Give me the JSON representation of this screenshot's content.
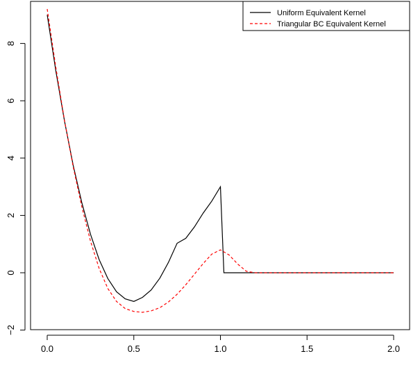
{
  "chart_data": {
    "type": "line",
    "title": "",
    "xlabel": "",
    "ylabel": "",
    "xlim": [
      0,
      2
    ],
    "ylim": [
      -2,
      9
    ],
    "x_ticks": [
      {
        "value": 0.0,
        "label": "0.0"
      },
      {
        "value": 0.5,
        "label": "0.5"
      },
      {
        "value": 1.0,
        "label": "1.0"
      },
      {
        "value": 1.5,
        "label": "1.5"
      },
      {
        "value": 2.0,
        "label": "2.0"
      }
    ],
    "y_ticks": [
      {
        "value": -2,
        "label": "−2"
      },
      {
        "value": 0,
        "label": "0"
      },
      {
        "value": 2,
        "label": "2"
      },
      {
        "value": 4,
        "label": "4"
      },
      {
        "value": 6,
        "label": "6"
      },
      {
        "value": 8,
        "label": "8"
      }
    ],
    "grid": false,
    "legend_position": "top-right",
    "series": [
      {
        "name": "Uniform Equivalent Kernel",
        "color": "#000000",
        "line_style": "solid",
        "x": [
          0.0,
          0.05,
          0.1,
          0.15,
          0.2,
          0.25,
          0.3,
          0.35,
          0.4,
          0.45,
          0.5,
          0.55,
          0.6,
          0.65,
          0.7,
          0.75,
          0.8,
          0.85,
          0.9,
          0.95,
          1.0,
          1.02,
          1.1,
          1.2,
          1.3,
          1.4,
          1.5,
          1.6,
          1.7,
          1.8,
          1.9,
          2.0
        ],
        "y": [
          9.0,
          7.03,
          5.28,
          3.75,
          2.44,
          1.34,
          0.46,
          -0.2,
          -0.66,
          -0.91,
          -1.0,
          -0.86,
          -0.6,
          -0.19,
          0.36,
          1.03,
          1.2,
          1.6,
          2.08,
          2.5,
          3.0,
          0.0,
          0.0,
          0.0,
          0.0,
          0.0,
          0.0,
          0.0,
          0.0,
          0.0,
          0.0,
          0.0
        ]
      },
      {
        "name": "Triangular BC Equivalent Kernel",
        "color": "#ff0000",
        "line_style": "dashed",
        "x": [
          0.0,
          0.05,
          0.1,
          0.15,
          0.2,
          0.25,
          0.3,
          0.35,
          0.4,
          0.45,
          0.5,
          0.55,
          0.6,
          0.65,
          0.7,
          0.75,
          0.8,
          0.85,
          0.9,
          0.95,
          1.0,
          1.05,
          1.1,
          1.15,
          1.2,
          1.3,
          1.4,
          1.5,
          1.6,
          1.7,
          1.8,
          1.9,
          2.0
        ],
        "y": [
          9.2,
          7.15,
          5.3,
          3.7,
          2.3,
          1.1,
          0.15,
          -0.55,
          -1.0,
          -1.25,
          -1.35,
          -1.38,
          -1.33,
          -1.22,
          -1.02,
          -0.75,
          -0.42,
          -0.05,
          0.32,
          0.65,
          0.8,
          0.62,
          0.3,
          0.05,
          0.0,
          0.0,
          0.0,
          0.0,
          0.0,
          0.0,
          0.0,
          0.0,
          0.0
        ]
      }
    ]
  }
}
